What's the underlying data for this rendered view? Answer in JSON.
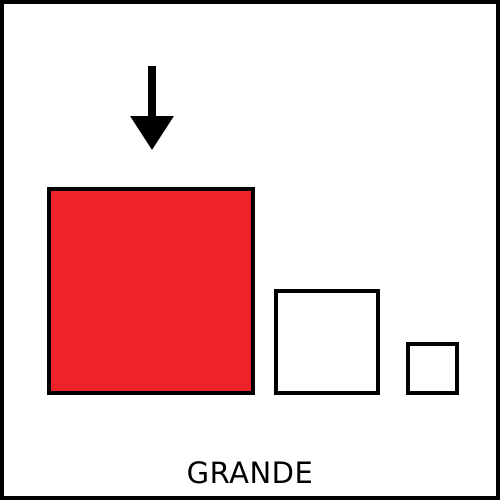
{
  "caption": "GRANDE",
  "indicator": {
    "icon": "arrow-down-icon",
    "color": "#000000"
  },
  "squares": [
    {
      "size": "large",
      "fill": "#ee2229",
      "highlighted": true
    },
    {
      "size": "medium",
      "fill": "#ffffff",
      "highlighted": false
    },
    {
      "size": "small",
      "fill": "#ffffff",
      "highlighted": false
    }
  ],
  "colors": {
    "border": "#000000",
    "background": "#ffffff"
  }
}
